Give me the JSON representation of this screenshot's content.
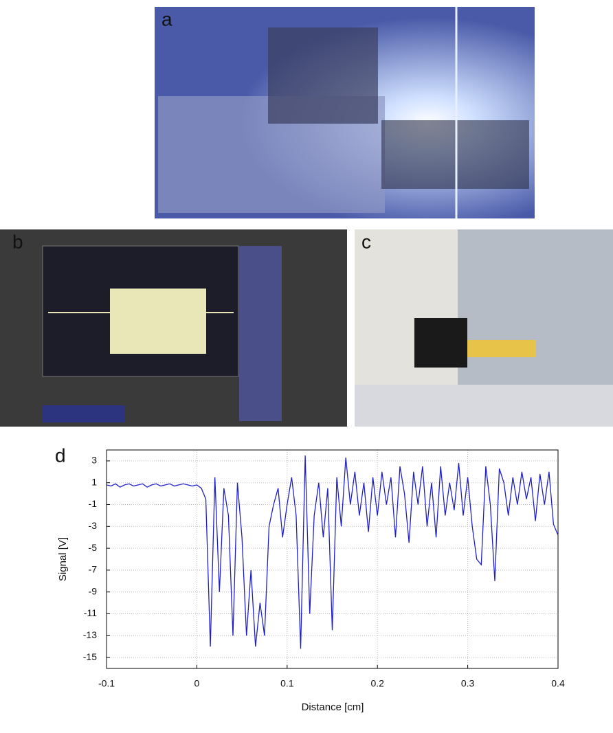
{
  "figure": {
    "panel_labels": [
      "a",
      "b",
      "c",
      "d"
    ]
  },
  "chart_data": {
    "type": "line",
    "xlabel": "Distance [cm]",
    "ylabel": "Signal [V]",
    "x": [
      -0.1,
      -0.095,
      -0.09,
      -0.085,
      -0.08,
      -0.075,
      -0.07,
      -0.065,
      -0.06,
      -0.055,
      -0.05,
      -0.045,
      -0.04,
      -0.035,
      -0.03,
      -0.025,
      -0.02,
      -0.015,
      -0.01,
      -0.005,
      0,
      0.005,
      0.01,
      0.015,
      0.02,
      0.025,
      0.03,
      0.035,
      0.04,
      0.045,
      0.05,
      0.055,
      0.06,
      0.065,
      0.07,
      0.075,
      0.08,
      0.085,
      0.09,
      0.095,
      0.1,
      0.105,
      0.11,
      0.115,
      0.12,
      0.125,
      0.13,
      0.135,
      0.14,
      0.145,
      0.15,
      0.155,
      0.16,
      0.165,
      0.17,
      0.175,
      0.18,
      0.185,
      0.19,
      0.195,
      0.2,
      0.205,
      0.21,
      0.215,
      0.22,
      0.225,
      0.23,
      0.235,
      0.24,
      0.245,
      0.25,
      0.255,
      0.26,
      0.265,
      0.27,
      0.275,
      0.28,
      0.285,
      0.29,
      0.295,
      0.3,
      0.305,
      0.31,
      0.315,
      0.32,
      0.325,
      0.33,
      0.335,
      0.34,
      0.345,
      0.35,
      0.355,
      0.36,
      0.365,
      0.37,
      0.375,
      0.38,
      0.385,
      0.39,
      0.395,
      0.4
    ],
    "series": [
      {
        "color": "#1f1fc8",
        "values": [
          0.8,
          0.7,
          0.9,
          0.6,
          0.8,
          0.9,
          0.7,
          0.8,
          0.9,
          0.6,
          0.8,
          0.9,
          0.7,
          0.8,
          0.9,
          0.7,
          0.8,
          0.9,
          0.8,
          0.7,
          0.8,
          0.5,
          -0.5,
          -14,
          1.5,
          -9,
          0.5,
          -2,
          -13,
          1,
          -4,
          -13,
          -7,
          -14,
          -10,
          -13,
          -3,
          -1,
          0.5,
          -4,
          -1,
          1.5,
          -2,
          -14.2,
          3.5,
          -11,
          -2,
          1,
          -4,
          0.5,
          -12.5,
          1.5,
          -3,
          3.3,
          -1,
          2,
          -2,
          1,
          -3.5,
          1.5,
          -2,
          2,
          -1,
          1.5,
          -4,
          2.5,
          0,
          -4.5,
          2,
          -1,
          2.5,
          -3,
          1,
          -4,
          2.5,
          -2,
          1,
          -1.5,
          2.8,
          -2,
          1.5,
          -3,
          -6,
          -6.5,
          2.5,
          -1,
          -8,
          2.3,
          1,
          -2,
          1.5,
          -1,
          2,
          -0.5,
          1.5,
          -2.5,
          1.8,
          -1,
          2,
          -2.8,
          -3.8
        ]
      }
    ],
    "xlim": [
      -0.1,
      0.4
    ],
    "ylim": [
      -16,
      4
    ],
    "xticks": [
      -0.1,
      0,
      0.1,
      0.2,
      0.3,
      0.4
    ],
    "yticks": [
      3,
      1,
      -1,
      -3,
      -5,
      -7,
      -9,
      -11,
      -13,
      -15
    ],
    "grid": true
  }
}
